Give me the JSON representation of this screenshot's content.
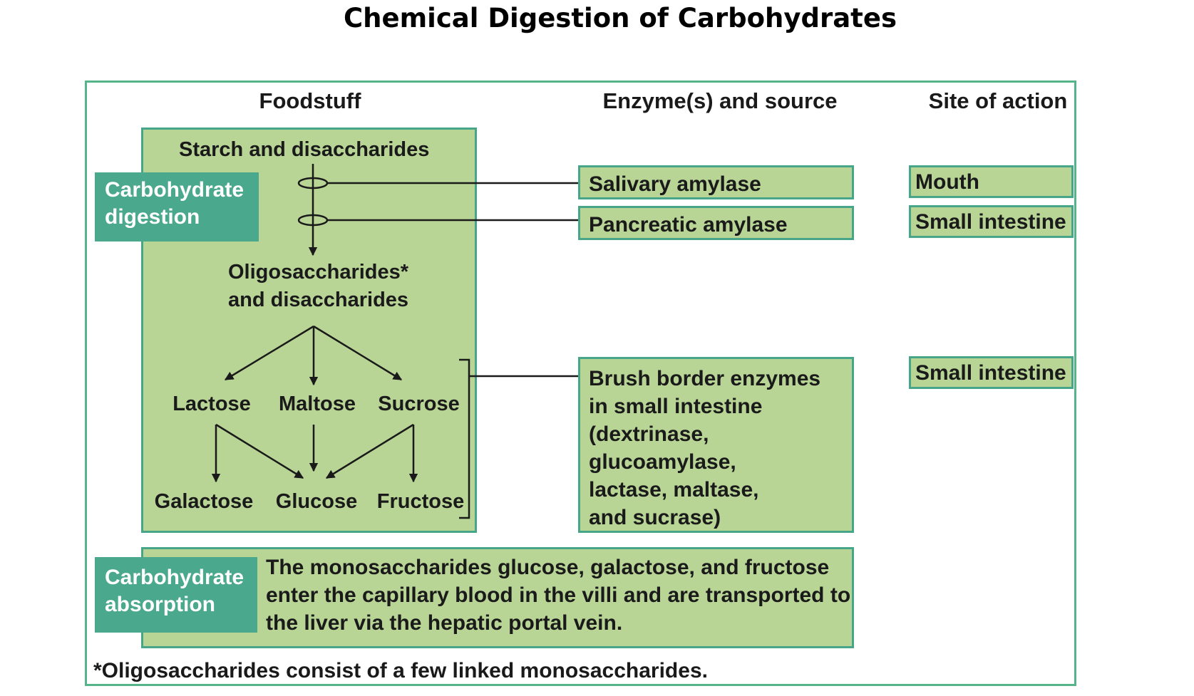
{
  "title": "Chemical Digestion of Carbohydrates",
  "columns": {
    "foodstuff": "Foodstuff",
    "enzyme": "Enzyme(s) and source",
    "site": "Site of action"
  },
  "sections": {
    "digestion": {
      "line1": "Carbohydrate",
      "line2": "digestion"
    },
    "absorption": {
      "line1": "Carbohydrate",
      "line2": "absorption"
    }
  },
  "foodstuff": {
    "starch": "Starch and disaccharides",
    "oligo_line1": "Oligosaccharides*",
    "oligo_line2": "and disaccharides",
    "disaccharides": [
      "Lactose",
      "Maltose",
      "Sucrose"
    ],
    "monosaccharides": [
      "Galactose",
      "Glucose",
      "Fructose"
    ]
  },
  "enzymes": {
    "salivary": "Salivary amylase",
    "pancreatic": "Pancreatic amylase",
    "brush_border": [
      "Brush border enzymes",
      "in small intestine",
      "(dextrinase,",
      "glucoamylase,",
      "lactase, maltase,",
      "and sucrase)"
    ]
  },
  "sites": {
    "salivary": "Mouth",
    "pancreatic": "Small intestine",
    "brush_border": "Small intestine"
  },
  "absorption_text": [
    "The monosaccharides glucose, galactose, and fructose",
    "enter the capillary blood in the villi and are transported to",
    "the liver via the hepatic portal vein."
  ],
  "footnote": "*Oligosaccharides consist of a few linked monosaccharides.",
  "colors": {
    "box_fill": "#b8d596",
    "box_border": "#47a589",
    "label_fill": "#4aa88c",
    "frame": "#55b48a"
  }
}
